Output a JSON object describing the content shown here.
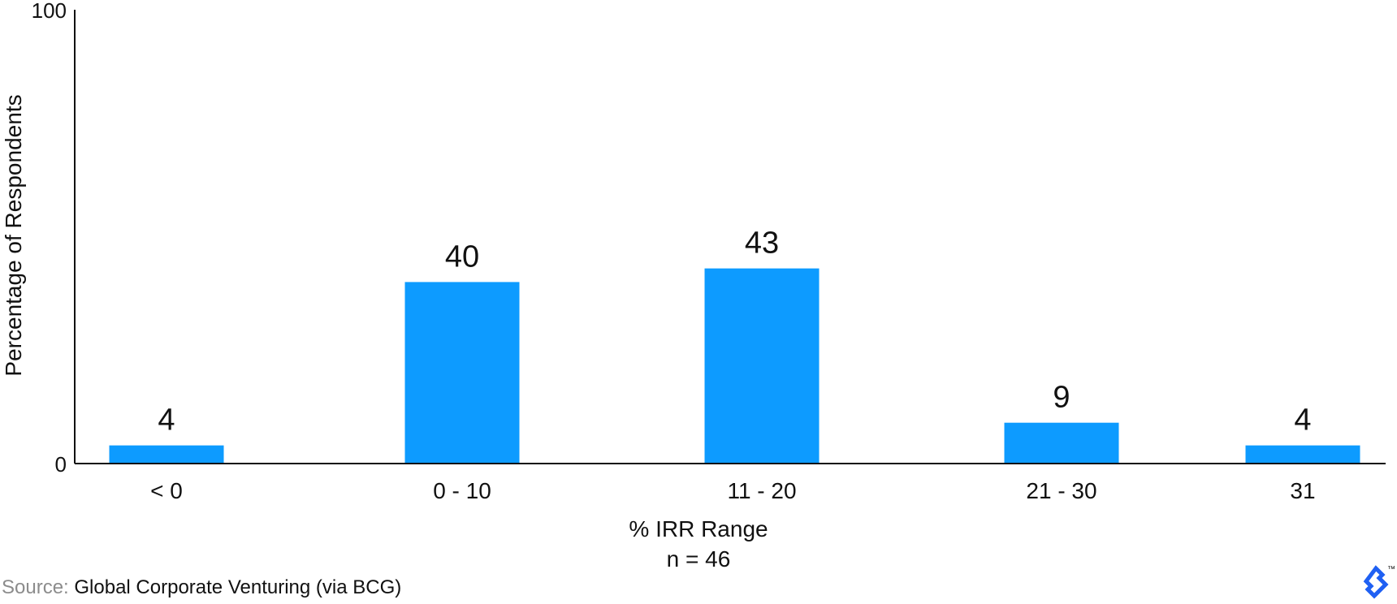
{
  "chart_data": {
    "type": "bar",
    "categories": [
      "< 0",
      "0 - 10",
      "11 - 20",
      "21 - 30",
      "31"
    ],
    "values": [
      4,
      40,
      43,
      9,
      4
    ],
    "data_labels": [
      "4",
      "40",
      "43",
      "9",
      "4"
    ],
    "ylabel": "Percentage of Respondents",
    "xlabel": "% IRR Range",
    "xlabel_sub": "n = 46",
    "ylim": [
      0,
      100
    ],
    "y_ticks": [
      "0",
      "100"
    ],
    "grid": false,
    "legend": "none",
    "bar_color": "#0d9bff"
  },
  "source": {
    "label": "Source:",
    "text": "Global Corporate Venturing (via BCG)"
  },
  "logo": {
    "icon": "toptal-logo-icon",
    "tm": "™",
    "color": "#1f60f3"
  }
}
